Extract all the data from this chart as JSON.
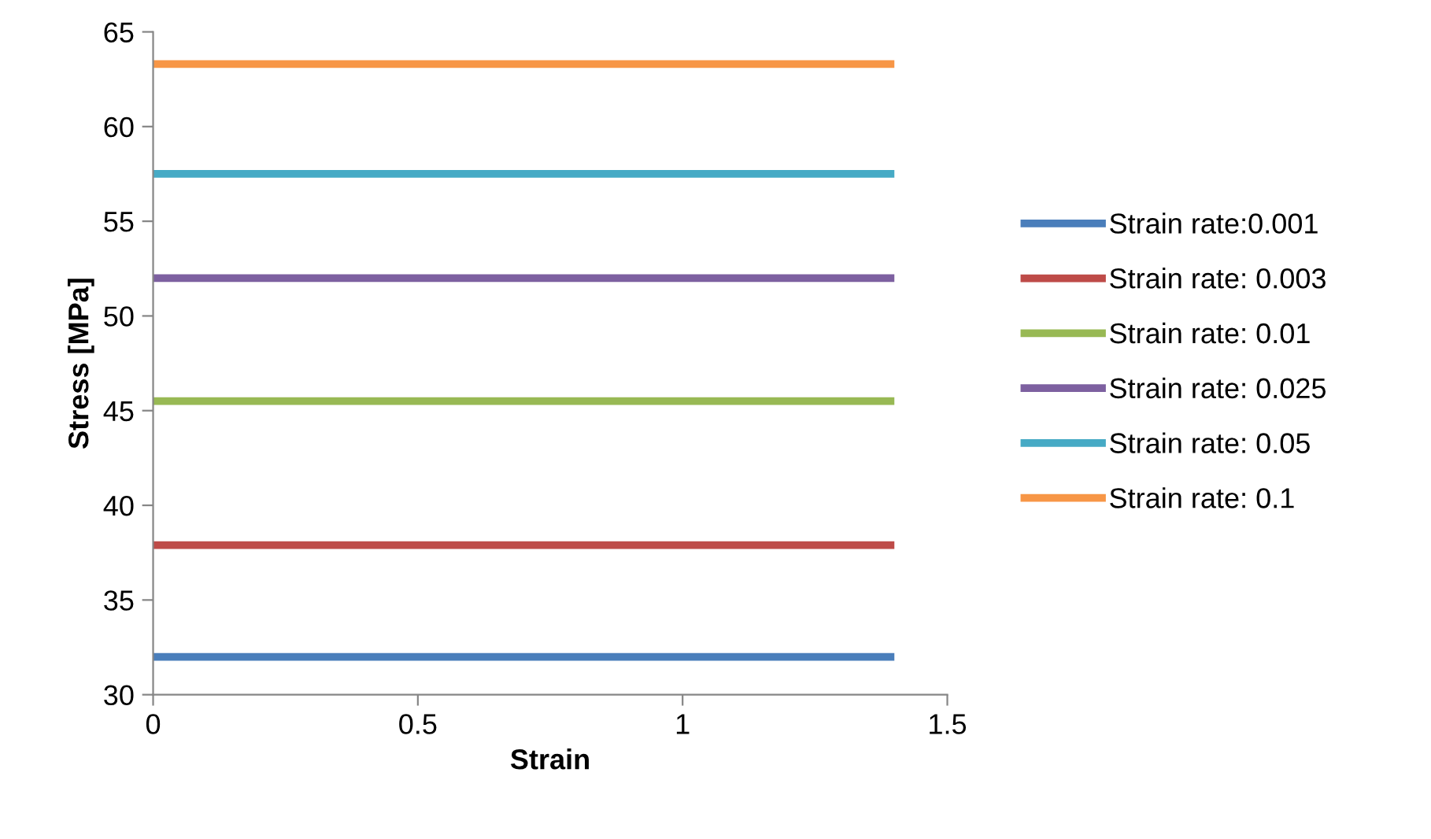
{
  "chart_data": {
    "type": "line",
    "xlabel": "Strain",
    "ylabel": "Stress [MPa]",
    "x": [
      0,
      1.4
    ],
    "xlim": [
      0,
      1.5
    ],
    "xticks": [
      0,
      0.5,
      1,
      1.5
    ],
    "ylim": [
      30,
      65
    ],
    "yticks": [
      30,
      35,
      40,
      45,
      50,
      55,
      60,
      65
    ],
    "grid": false,
    "legend": "right",
    "marker": "none",
    "line_style": "solid",
    "series": [
      {
        "name": "Strain rate:0.001",
        "color": "#4a7ebb",
        "values": [
          32,
          32
        ]
      },
      {
        "name": "Strain rate: 0.003",
        "color": "#be4b48",
        "values": [
          37.9,
          37.9
        ]
      },
      {
        "name": "Strain rate: 0.01",
        "color": "#98b954",
        "values": [
          45.5,
          45.5
        ]
      },
      {
        "name": "Strain rate: 0.025",
        "color": "#7d60a0",
        "values": [
          52,
          52
        ]
      },
      {
        "name": "Strain rate: 0.05",
        "color": "#46aac5",
        "values": [
          57.5,
          57.5
        ]
      },
      {
        "name": "Strain rate: 0.1",
        "color": "#f79646",
        "values": [
          63.3,
          63.3
        ]
      }
    ]
  }
}
